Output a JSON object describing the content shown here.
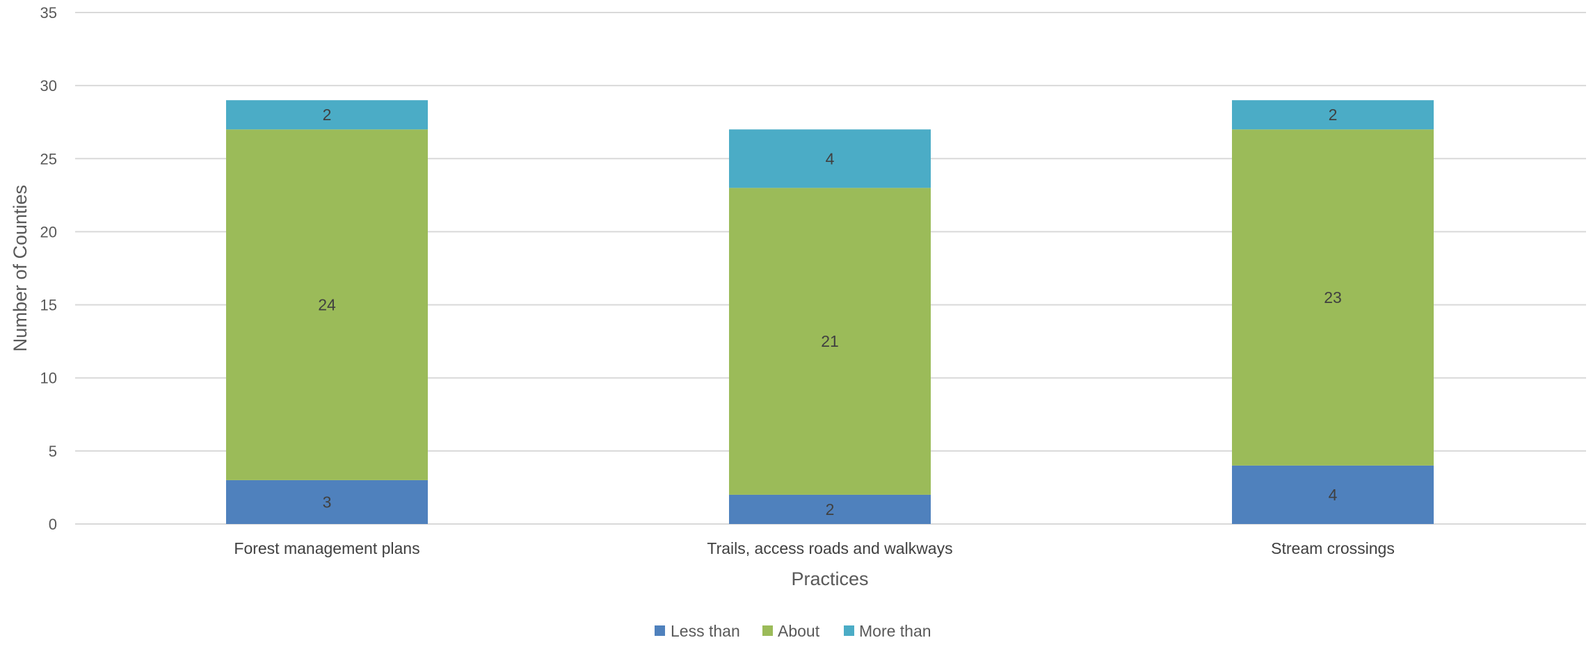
{
  "chart_data": {
    "type": "bar",
    "stacked": true,
    "categories": [
      "Forest management plans",
      "Trails, access roads and walkways",
      "Stream crossings"
    ],
    "series": [
      {
        "name": "Less than",
        "values": [
          3,
          2,
          4
        ],
        "color": "#4f81bd"
      },
      {
        "name": "About",
        "values": [
          24,
          21,
          23
        ],
        "color": "#9bbb59"
      },
      {
        "name": "More than",
        "values": [
          2,
          4,
          2
        ],
        "color": "#4bacc6"
      }
    ],
    "xlabel": "Practices",
    "ylabel": "Number of Counties",
    "ylim": [
      0,
      35
    ],
    "yticks": [
      0,
      5,
      10,
      15,
      20,
      25,
      30,
      35
    ],
    "grid": true,
    "legend_position": "bottom"
  }
}
